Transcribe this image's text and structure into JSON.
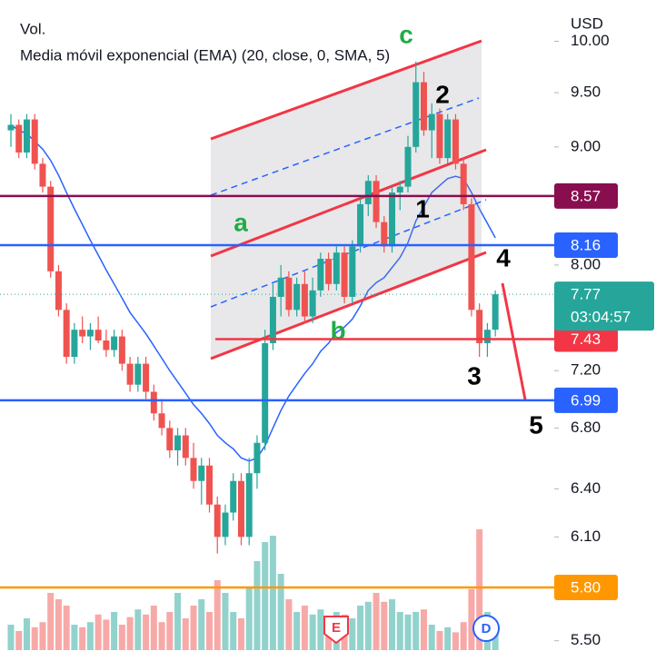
{
  "chart_data": {
    "type": "candlestick",
    "volume_label": "Vol.",
    "indicator_label": "Media móvil exponencial (EMA) (20, close, 0, SMA, 5)",
    "currency": "USD",
    "log_scale": true,
    "ylim": [
      5.39,
      10.42
    ],
    "yticks": [
      {
        "value": 10,
        "label": "10.00"
      },
      {
        "value": 9.5,
        "label": "9.50"
      },
      {
        "value": 9,
        "label": "9.00"
      },
      {
        "value": 8,
        "label": "8.00"
      },
      {
        "value": 7.2,
        "label": "7.20"
      },
      {
        "value": 6.8,
        "label": "6.80"
      },
      {
        "value": 6.4,
        "label": "6.40"
      },
      {
        "value": 6.1,
        "label": "6.10"
      },
      {
        "value": 5.5,
        "label": "5.50"
      }
    ],
    "up_color": "#26a69a",
    "down_color": "#ef5350",
    "open": [
      9.15,
      9.2,
      8.95,
      9.25,
      8.85,
      8.65,
      7.95,
      7.65,
      7.3,
      7.5,
      7.45,
      7.5,
      7.42,
      7.35,
      7.45,
      7.25,
      7.1,
      7.25,
      7.05,
      6.9,
      6.8,
      6.65,
      6.75,
      6.6,
      6.45,
      6.55,
      6.3,
      6.1,
      6.25,
      6.45,
      6.1,
      6.5,
      6.7,
      7.4,
      7.75,
      7.9,
      7.65,
      7.85,
      7.6,
      7.8,
      8.05,
      7.85,
      8.1,
      7.75,
      8.15,
      8.5,
      8.7,
      8.35,
      8.15,
      8.6,
      8.65,
      9.0,
      9.6,
      9.15,
      9.3,
      8.9,
      9.25,
      8.85,
      8.5,
      7.65,
      7.4,
      7.5
    ],
    "high": [
      9.3,
      9.25,
      9.3,
      9.3,
      8.9,
      8.7,
      8.0,
      7.7,
      7.55,
      7.6,
      7.55,
      7.6,
      7.5,
      7.5,
      7.5,
      7.3,
      7.3,
      7.3,
      7.1,
      7.0,
      6.85,
      6.8,
      6.8,
      6.7,
      6.6,
      6.6,
      6.35,
      6.3,
      6.5,
      6.5,
      6.6,
      6.75,
      7.5,
      7.85,
      8.0,
      7.95,
      7.9,
      7.95,
      7.9,
      8.1,
      8.1,
      8.15,
      8.15,
      8.2,
      8.55,
      8.75,
      8.75,
      8.4,
      8.65,
      8.7,
      9.1,
      9.8,
      9.7,
      9.4,
      9.35,
      9.3,
      9.3,
      8.9,
      8.55,
      7.7,
      7.55,
      7.8
    ],
    "low": [
      9.0,
      8.9,
      8.9,
      8.8,
      8.6,
      7.9,
      7.6,
      7.25,
      7.25,
      7.4,
      7.35,
      7.4,
      7.3,
      7.3,
      7.2,
      7.05,
      7.05,
      7.0,
      6.85,
      6.75,
      6.6,
      6.55,
      6.55,
      6.4,
      6.3,
      6.25,
      6.0,
      6.05,
      6.2,
      6.05,
      6.05,
      6.4,
      6.65,
      7.35,
      7.6,
      7.6,
      7.6,
      7.55,
      7.55,
      7.75,
      7.8,
      7.8,
      7.7,
      7.7,
      8.1,
      8.4,
      8.3,
      8.1,
      8.1,
      8.45,
      8.6,
      8.95,
      9.1,
      8.9,
      8.85,
      8.85,
      8.8,
      8.45,
      7.6,
      7.3,
      7.3,
      7.45
    ],
    "close": [
      9.2,
      8.95,
      9.25,
      8.85,
      8.65,
      7.95,
      7.65,
      7.3,
      7.5,
      7.45,
      7.5,
      7.42,
      7.35,
      7.45,
      7.25,
      7.1,
      7.25,
      7.05,
      6.9,
      6.8,
      6.65,
      6.75,
      6.6,
      6.45,
      6.55,
      6.3,
      6.1,
      6.25,
      6.45,
      6.1,
      6.5,
      6.7,
      7.4,
      7.75,
      7.9,
      7.65,
      7.85,
      7.6,
      7.8,
      8.05,
      7.85,
      8.1,
      7.75,
      8.15,
      8.5,
      8.7,
      8.35,
      8.15,
      8.6,
      8.65,
      9.0,
      9.6,
      9.15,
      9.3,
      8.9,
      9.25,
      8.85,
      8.5,
      7.65,
      7.4,
      7.5,
      7.77
    ],
    "ema": [
      9.2,
      9.15,
      9.12,
      9.05,
      8.98,
      8.88,
      8.75,
      8.6,
      8.46,
      8.33,
      8.2,
      8.08,
      7.96,
      7.85,
      7.74,
      7.63,
      7.55,
      7.47,
      7.38,
      7.29,
      7.2,
      7.12,
      7.04,
      6.96,
      6.9,
      6.83,
      6.75,
      6.7,
      6.66,
      6.6,
      6.58,
      6.6,
      6.68,
      6.8,
      6.92,
      7.02,
      7.1,
      7.18,
      7.25,
      7.34,
      7.4,
      7.48,
      7.52,
      7.58,
      7.68,
      7.8,
      7.86,
      7.9,
      7.98,
      8.06,
      8.18,
      8.36,
      8.48,
      8.6,
      8.66,
      8.72,
      8.74,
      8.72,
      8.6,
      8.46,
      8.34,
      8.22
    ],
    "ema_color": "#2962ff",
    "volume": [
      20,
      15,
      25,
      18,
      22,
      45,
      40,
      35,
      20,
      18,
      22,
      28,
      24,
      30,
      20,
      26,
      32,
      28,
      35,
      22,
      30,
      45,
      25,
      35,
      40,
      30,
      55,
      45,
      30,
      25,
      50,
      70,
      85,
      90,
      60,
      40,
      30,
      35,
      28,
      32,
      25,
      30,
      28,
      25,
      35,
      38,
      45,
      38,
      40,
      30,
      28,
      30,
      32,
      20,
      15,
      18,
      14,
      22,
      48,
      95,
      30,
      20
    ],
    "volume_ylim": [
      0,
      100
    ],
    "price_lines": [
      {
        "value": 8.57,
        "label": "8.57",
        "color": "#880e4f"
      },
      {
        "value": 8.16,
        "label": "8.16",
        "color": "#2962ff"
      },
      {
        "value": 7.43,
        "label": "7.43",
        "color": "#f23645"
      },
      {
        "value": 6.99,
        "label": "6.99",
        "color": "#2962ff"
      },
      {
        "value": 5.8,
        "label": "5.80",
        "color": "#ff9800"
      }
    ],
    "current_price": {
      "value": 7.77,
      "label": "7.77",
      "countdown": "03:04:57",
      "color": "#26a69a"
    },
    "wave_labels": [
      "a",
      "b",
      "c",
      "1",
      "2",
      "3",
      "4",
      "5"
    ],
    "events": [
      "E",
      "D"
    ]
  }
}
